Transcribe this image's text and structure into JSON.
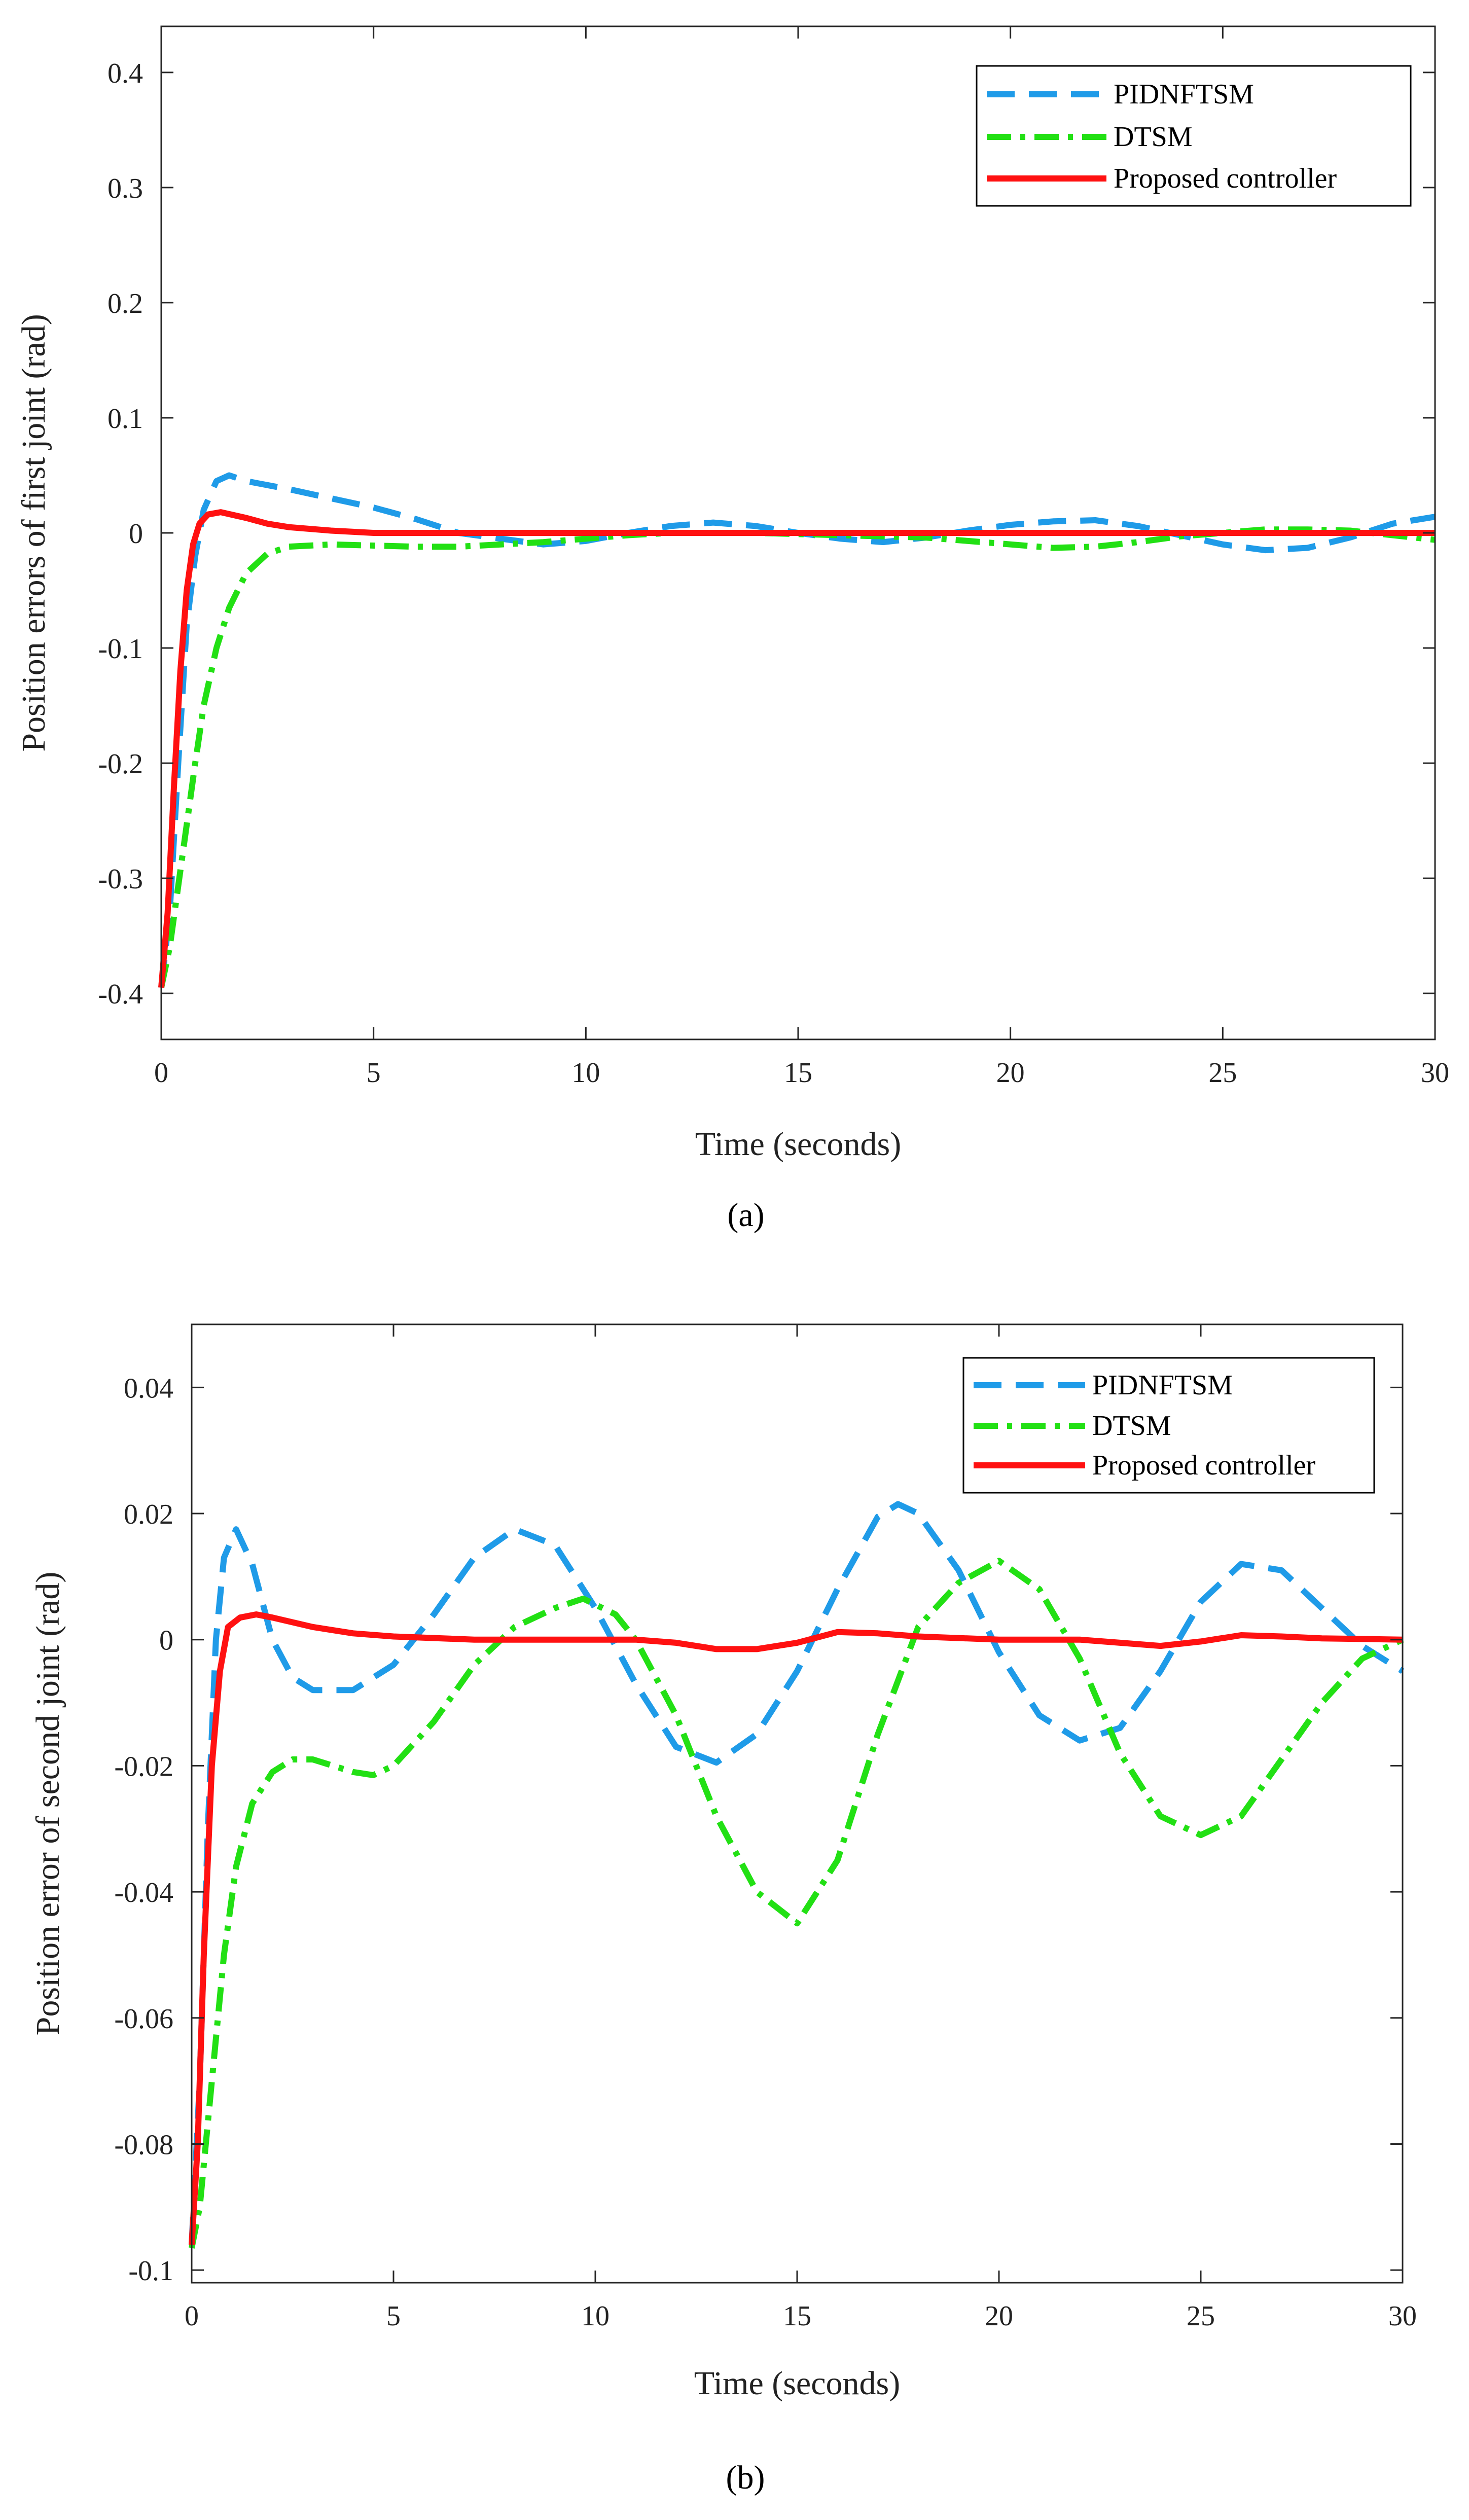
{
  "figure": {
    "caption_a": "(a)",
    "caption_b": "(b)",
    "colors": {
      "pidnftsm": "#1f9be8",
      "dtsm": "#22e014",
      "proposed": "#ff1111"
    }
  },
  "chart_data": [
    {
      "type": "line",
      "id": "a",
      "title": "",
      "xlabel": "Time (seconds)",
      "ylabel": "Position errors of first joint (rad)",
      "xlim": [
        0,
        30
      ],
      "ylim": [
        -0.44,
        0.44
      ],
      "xticks": [
        0,
        5,
        10,
        15,
        20,
        25,
        30
      ],
      "yticks": [
        -0.4,
        -0.3,
        -0.2,
        -0.1,
        0,
        0.1,
        0.2,
        0.3,
        0.4
      ],
      "ytick_labels": [
        "-0.4",
        "-0.3",
        "-0.2",
        "-0.1",
        "0",
        "0.1",
        "0.2",
        "0.3",
        "0.4"
      ],
      "legend_position": "top-right",
      "grid": false,
      "series": [
        {
          "name": "PIDNFTSM",
          "style": "dashed",
          "points": [
            [
              0,
              -0.395
            ],
            [
              0.2,
              -0.33
            ],
            [
              0.4,
              -0.2
            ],
            [
              0.6,
              -0.08
            ],
            [
              0.8,
              -0.02
            ],
            [
              1.0,
              0.02
            ],
            [
              1.3,
              0.045
            ],
            [
              1.6,
              0.05
            ],
            [
              2,
              0.045
            ],
            [
              3,
              0.038
            ],
            [
              4,
              0.03
            ],
            [
              5,
              0.022
            ],
            [
              6,
              0.012
            ],
            [
              7,
              0.0
            ],
            [
              8,
              -0.005
            ],
            [
              9,
              -0.01
            ],
            [
              10,
              -0.007
            ],
            [
              11,
              0.0
            ],
            [
              12,
              0.006
            ],
            [
              13,
              0.009
            ],
            [
              14,
              0.006
            ],
            [
              15,
              0.0
            ],
            [
              16,
              -0.005
            ],
            [
              17,
              -0.008
            ],
            [
              18,
              -0.004
            ],
            [
              19,
              0.002
            ],
            [
              20,
              0.007
            ],
            [
              21,
              0.01
            ],
            [
              22,
              0.011
            ],
            [
              23,
              0.006
            ],
            [
              24,
              -0.002
            ],
            [
              25,
              -0.01
            ],
            [
              26,
              -0.015
            ],
            [
              27,
              -0.013
            ],
            [
              28,
              -0.004
            ],
            [
              29,
              0.008
            ],
            [
              30,
              0.014
            ]
          ]
        },
        {
          "name": "DTSM",
          "style": "dashdot",
          "points": [
            [
              0,
              -0.395
            ],
            [
              0.2,
              -0.36
            ],
            [
              0.5,
              -0.28
            ],
            [
              0.8,
              -0.2
            ],
            [
              1.0,
              -0.15
            ],
            [
              1.3,
              -0.1
            ],
            [
              1.6,
              -0.065
            ],
            [
              2,
              -0.035
            ],
            [
              2.5,
              -0.018
            ],
            [
              3,
              -0.012
            ],
            [
              4,
              -0.01
            ],
            [
              5,
              -0.011
            ],
            [
              6,
              -0.012
            ],
            [
              7,
              -0.012
            ],
            [
              8,
              -0.01
            ],
            [
              9,
              -0.008
            ],
            [
              10,
              -0.005
            ],
            [
              11,
              -0.002
            ],
            [
              12,
              0.0
            ],
            [
              13,
              0.0
            ],
            [
              14,
              0.0
            ],
            [
              15,
              -0.001
            ],
            [
              16,
              -0.002
            ],
            [
              17,
              -0.003
            ],
            [
              18,
              -0.004
            ],
            [
              19,
              -0.007
            ],
            [
              20,
              -0.01
            ],
            [
              21,
              -0.013
            ],
            [
              22,
              -0.012
            ],
            [
              23,
              -0.008
            ],
            [
              24,
              -0.003
            ],
            [
              25,
              0.0
            ],
            [
              26,
              0.003
            ],
            [
              27,
              0.003
            ],
            [
              28,
              0.002
            ],
            [
              29,
              -0.002
            ],
            [
              30,
              -0.006
            ]
          ]
        },
        {
          "name": "Proposed controller",
          "style": "solid",
          "points": [
            [
              0,
              -0.395
            ],
            [
              0.15,
              -0.33
            ],
            [
              0.3,
              -0.22
            ],
            [
              0.45,
              -0.12
            ],
            [
              0.6,
              -0.05
            ],
            [
              0.75,
              -0.01
            ],
            [
              0.9,
              0.008
            ],
            [
              1.1,
              0.016
            ],
            [
              1.4,
              0.018
            ],
            [
              2,
              0.013
            ],
            [
              2.5,
              0.008
            ],
            [
              3,
              0.005
            ],
            [
              4,
              0.002
            ],
            [
              5,
              0.0
            ],
            [
              6,
              0.0
            ],
            [
              30,
              0.0
            ]
          ]
        }
      ]
    },
    {
      "type": "line",
      "id": "b",
      "title": "",
      "xlabel": "Time (seconds)",
      "ylabel": "Position error of second joint (rad)",
      "xlim": [
        0,
        30
      ],
      "ylim": [
        -0.102,
        0.05
      ],
      "xticks": [
        0,
        5,
        10,
        15,
        20,
        25,
        30
      ],
      "yticks": [
        -0.1,
        -0.08,
        -0.06,
        -0.04,
        -0.02,
        0,
        0.02,
        0.04
      ],
      "ytick_labels": [
        "-0.1",
        "-0.08",
        "-0.06",
        "-0.04",
        "-0.02",
        "0",
        "0.02",
        "0.04"
      ],
      "legend_position": "top-right",
      "grid": false,
      "series": [
        {
          "name": "PIDNFTSM",
          "style": "dashed",
          "points": [
            [
              0,
              -0.096
            ],
            [
              0.2,
              -0.07
            ],
            [
              0.4,
              -0.03
            ],
            [
              0.6,
              0.0
            ],
            [
              0.8,
              0.013
            ],
            [
              1.1,
              0.0175
            ],
            [
              1.5,
              0.012
            ],
            [
              2,
              0.0
            ],
            [
              2.5,
              -0.006
            ],
            [
              3,
              -0.008
            ],
            [
              4,
              -0.008
            ],
            [
              5,
              -0.004
            ],
            [
              6,
              0.004
            ],
            [
              7,
              0.013
            ],
            [
              8,
              0.0175
            ],
            [
              9,
              0.015
            ],
            [
              10,
              0.005
            ],
            [
              11,
              -0.007
            ],
            [
              12,
              -0.017
            ],
            [
              13,
              -0.0195
            ],
            [
              14,
              -0.015
            ],
            [
              15,
              -0.005
            ],
            [
              16,
              0.008
            ],
            [
              17,
              0.0195
            ],
            [
              17.5,
              0.0215
            ],
            [
              18,
              0.02
            ],
            [
              19,
              0.011
            ],
            [
              20,
              -0.002
            ],
            [
              21,
              -0.012
            ],
            [
              22,
              -0.016
            ],
            [
              23,
              -0.014
            ],
            [
              24,
              -0.005
            ],
            [
              25,
              0.006
            ],
            [
              26,
              0.012
            ],
            [
              27,
              0.011
            ],
            [
              28,
              0.005
            ],
            [
              29,
              -0.001
            ],
            [
              30,
              -0.005
            ]
          ]
        },
        {
          "name": "DTSM",
          "style": "dashdot",
          "points": [
            [
              0,
              -0.0965
            ],
            [
              0.2,
              -0.09
            ],
            [
              0.5,
              -0.07
            ],
            [
              0.8,
              -0.05
            ],
            [
              1.1,
              -0.036
            ],
            [
              1.5,
              -0.026
            ],
            [
              2,
              -0.021
            ],
            [
              2.5,
              -0.019
            ],
            [
              3,
              -0.019
            ],
            [
              4,
              -0.021
            ],
            [
              4.5,
              -0.0215
            ],
            [
              5,
              -0.02
            ],
            [
              6,
              -0.013
            ],
            [
              7,
              -0.004
            ],
            [
              8,
              0.002
            ],
            [
              9,
              0.005
            ],
            [
              9.7,
              0.0065
            ],
            [
              10.5,
              0.004
            ],
            [
              11,
              0.0
            ],
            [
              12,
              -0.012
            ],
            [
              13,
              -0.028
            ],
            [
              14,
              -0.04
            ],
            [
              15,
              -0.045
            ],
            [
              16,
              -0.035
            ],
            [
              17,
              -0.015
            ],
            [
              18,
              0.002
            ],
            [
              19,
              0.009
            ],
            [
              20,
              0.0125
            ],
            [
              21,
              0.008
            ],
            [
              22,
              -0.003
            ],
            [
              23,
              -0.018
            ],
            [
              24,
              -0.028
            ],
            [
              25,
              -0.031
            ],
            [
              26,
              -0.028
            ],
            [
              27,
              -0.019
            ],
            [
              28,
              -0.01
            ],
            [
              29,
              -0.003
            ],
            [
              30,
              0.0
            ]
          ]
        },
        {
          "name": "Proposed controller",
          "style": "solid",
          "points": [
            [
              0,
              -0.096
            ],
            [
              0.15,
              -0.08
            ],
            [
              0.3,
              -0.05
            ],
            [
              0.5,
              -0.02
            ],
            [
              0.7,
              -0.005
            ],
            [
              0.9,
              0.002
            ],
            [
              1.2,
              0.0035
            ],
            [
              1.6,
              0.004
            ],
            [
              2,
              0.0035
            ],
            [
              3,
              0.002
            ],
            [
              4,
              0.001
            ],
            [
              5,
              0.0005
            ],
            [
              7,
              0.0
            ],
            [
              11,
              0.0
            ],
            [
              12,
              -0.0005
            ],
            [
              13,
              -0.0015
            ],
            [
              14,
              -0.0015
            ],
            [
              15,
              -0.0005
            ],
            [
              16,
              0.0012
            ],
            [
              17,
              0.001
            ],
            [
              18,
              0.0005
            ],
            [
              20,
              0.0
            ],
            [
              22,
              0.0
            ],
            [
              23,
              -0.0005
            ],
            [
              24,
              -0.001
            ],
            [
              25,
              -0.0003
            ],
            [
              26,
              0.0007
            ],
            [
              27,
              0.0005
            ],
            [
              28,
              0.0002
            ],
            [
              30,
              0.0
            ]
          ]
        }
      ]
    }
  ]
}
